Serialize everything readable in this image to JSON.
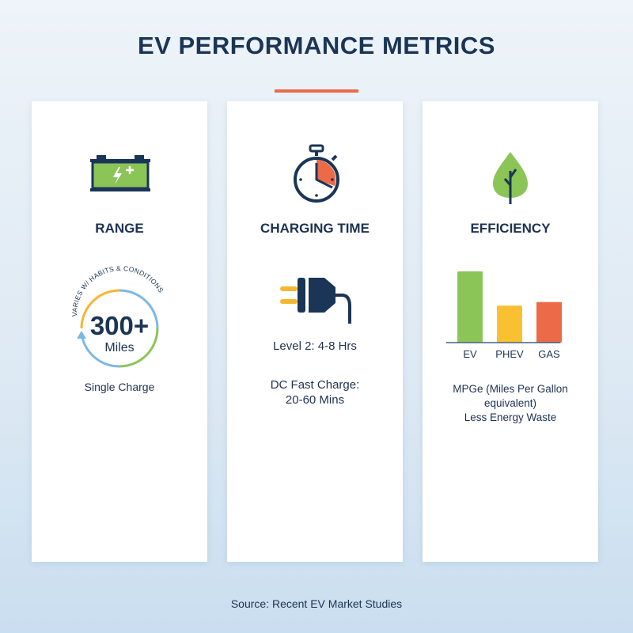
{
  "title": "EV PERFORMANCE METRICS",
  "colors": {
    "accent": "#ec6a48",
    "navy": "#1a3556",
    "green": "#8bc457",
    "yellow": "#f9c132",
    "orange": "#ec6a48",
    "blue": "#7cb8e6"
  },
  "range": {
    "icon": "battery-icon",
    "heading": "RANGE",
    "arc_label": "VARIES W/ HABITS & CONDITIONS",
    "value": "300+",
    "unit": "Miles",
    "caption": "Single Charge"
  },
  "charging": {
    "icon": "stopwatch-icon",
    "heading": "CHARGING TIME",
    "plug_icon": "plug-icon",
    "level2": "Level 2: 4-8 Hrs",
    "dc_line1": "DC Fast Charge:",
    "dc_line2": "20-60 Mins"
  },
  "efficiency": {
    "icon": "leaf-icon",
    "heading": "EFFICIENCY",
    "caption_line1": "MPGe (Miles Per Gallon",
    "caption_line2": "equivalent)",
    "caption_line3": "Less Energy Waste"
  },
  "chart_data": {
    "type": "bar",
    "categories": [
      "EV",
      "PHEV",
      "GAS"
    ],
    "values": [
      1.0,
      0.52,
      0.57
    ],
    "colors": [
      "#8bc457",
      "#f9c132",
      "#ec6a48"
    ],
    "title": "",
    "xlabel": "",
    "ylabel": "",
    "grid": false
  },
  "source": "Source: Recent EV Market Studies"
}
